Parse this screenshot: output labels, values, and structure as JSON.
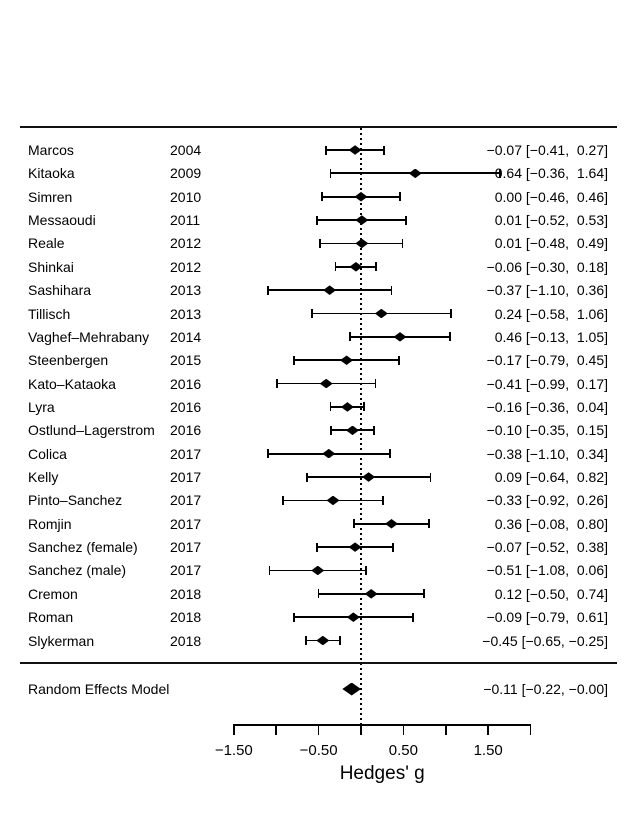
{
  "chart_data": {
    "type": "scatter",
    "variant": "forest-plot-meta-analysis",
    "title": "",
    "xlabel": "Hedges' g",
    "xlim": [
      -1.5,
      2.0
    ],
    "reference_line_x": 0,
    "grid": false,
    "x_ticks": [
      {
        "value": -1.5,
        "label": "−1.50"
      },
      {
        "value": -1.0,
        "label": ""
      },
      {
        "value": -0.5,
        "label": "−0.50"
      },
      {
        "value": 0.0,
        "label": ""
      },
      {
        "value": 0.5,
        "label": "0.50"
      },
      {
        "value": 1.0,
        "label": ""
      },
      {
        "value": 1.5,
        "label": "1.50"
      },
      {
        "value": 2.0,
        "label": ""
      }
    ],
    "studies": [
      {
        "author": "Marcos",
        "year": "2004",
        "estimate": -0.07,
        "ci_low": -0.41,
        "ci_high": 0.27,
        "annotation": "−0.07 [−0.41,  0.27]"
      },
      {
        "author": "Kitaoka",
        "year": "2009",
        "estimate": 0.64,
        "ci_low": -0.36,
        "ci_high": 1.64,
        "annotation": "0.64 [−0.36,  1.64]"
      },
      {
        "author": "Simren",
        "year": "2010",
        "estimate": 0.0,
        "ci_low": -0.46,
        "ci_high": 0.46,
        "annotation": "0.00 [−0.46,  0.46]"
      },
      {
        "author": "Messaoudi",
        "year": "2011",
        "estimate": 0.01,
        "ci_low": -0.52,
        "ci_high": 0.53,
        "annotation": "0.01 [−0.52,  0.53]"
      },
      {
        "author": "Reale",
        "year": "2012",
        "estimate": 0.01,
        "ci_low": -0.48,
        "ci_high": 0.49,
        "annotation": "0.01 [−0.48,  0.49]"
      },
      {
        "author": "Shinkai",
        "year": "2012",
        "estimate": -0.06,
        "ci_low": -0.3,
        "ci_high": 0.18,
        "annotation": "−0.06 [−0.30,  0.18]"
      },
      {
        "author": "Sashihara",
        "year": "2013",
        "estimate": -0.37,
        "ci_low": -1.1,
        "ci_high": 0.36,
        "annotation": "−0.37 [−1.10,  0.36]"
      },
      {
        "author": "Tillisch",
        "year": "2013",
        "estimate": 0.24,
        "ci_low": -0.58,
        "ci_high": 1.06,
        "annotation": "0.24 [−0.58,  1.06]"
      },
      {
        "author": "Vaghef–Mehrabany",
        "year": "2014",
        "estimate": 0.46,
        "ci_low": -0.13,
        "ci_high": 1.05,
        "annotation": "0.46 [−0.13,  1.05]"
      },
      {
        "author": "Steenbergen",
        "year": "2015",
        "estimate": -0.17,
        "ci_low": -0.79,
        "ci_high": 0.45,
        "annotation": "−0.17 [−0.79,  0.45]"
      },
      {
        "author": "Kato–Kataoka",
        "year": "2016",
        "estimate": -0.41,
        "ci_low": -0.99,
        "ci_high": 0.17,
        "annotation": "−0.41 [−0.99,  0.17]"
      },
      {
        "author": "Lyra",
        "year": "2016",
        "estimate": -0.16,
        "ci_low": -0.36,
        "ci_high": 0.04,
        "annotation": "−0.16 [−0.36,  0.04]"
      },
      {
        "author": "Ostlund–Lagerstrom",
        "year": "2016",
        "estimate": -0.1,
        "ci_low": -0.35,
        "ci_high": 0.15,
        "annotation": "−0.10 [−0.35,  0.15]"
      },
      {
        "author": "Colica",
        "year": "2017",
        "estimate": -0.38,
        "ci_low": -1.1,
        "ci_high": 0.34,
        "annotation": "−0.38 [−1.10,  0.34]"
      },
      {
        "author": "Kelly",
        "year": "2017",
        "estimate": 0.09,
        "ci_low": -0.64,
        "ci_high": 0.82,
        "annotation": "0.09 [−0.64,  0.82]"
      },
      {
        "author": "Pinto–Sanchez",
        "year": "2017",
        "estimate": -0.33,
        "ci_low": -0.92,
        "ci_high": 0.26,
        "annotation": "−0.33 [−0.92,  0.26]"
      },
      {
        "author": "Romjin",
        "year": "2017",
        "estimate": 0.36,
        "ci_low": -0.08,
        "ci_high": 0.8,
        "annotation": "0.36 [−0.08,  0.80]"
      },
      {
        "author": "Sanchez (female)",
        "year": "2017",
        "estimate": -0.07,
        "ci_low": -0.52,
        "ci_high": 0.38,
        "annotation": "−0.07 [−0.52,  0.38]"
      },
      {
        "author": "Sanchez (male)",
        "year": "2017",
        "estimate": -0.51,
        "ci_low": -1.08,
        "ci_high": 0.06,
        "annotation": "−0.51 [−1.08,  0.06]"
      },
      {
        "author": "Cremon",
        "year": "2018",
        "estimate": 0.12,
        "ci_low": -0.5,
        "ci_high": 0.74,
        "annotation": "0.12 [−0.50,  0.74]"
      },
      {
        "author": "Roman",
        "year": "2018",
        "estimate": -0.09,
        "ci_low": -0.79,
        "ci_high": 0.61,
        "annotation": "−0.09 [−0.79,  0.61]"
      },
      {
        "author": "Slykerman",
        "year": "2018",
        "estimate": -0.45,
        "ci_low": -0.65,
        "ci_high": -0.25,
        "annotation": "−0.45 [−0.65, −0.25]"
      }
    ],
    "summary": {
      "label": "Random Effects Model",
      "estimate": -0.11,
      "ci_low": -0.22,
      "ci_high": 0.0,
      "annotation": "−0.11 [−0.22, −0.00]"
    },
    "colors": {
      "foreground": "#000000",
      "background": "#ffffff"
    }
  }
}
